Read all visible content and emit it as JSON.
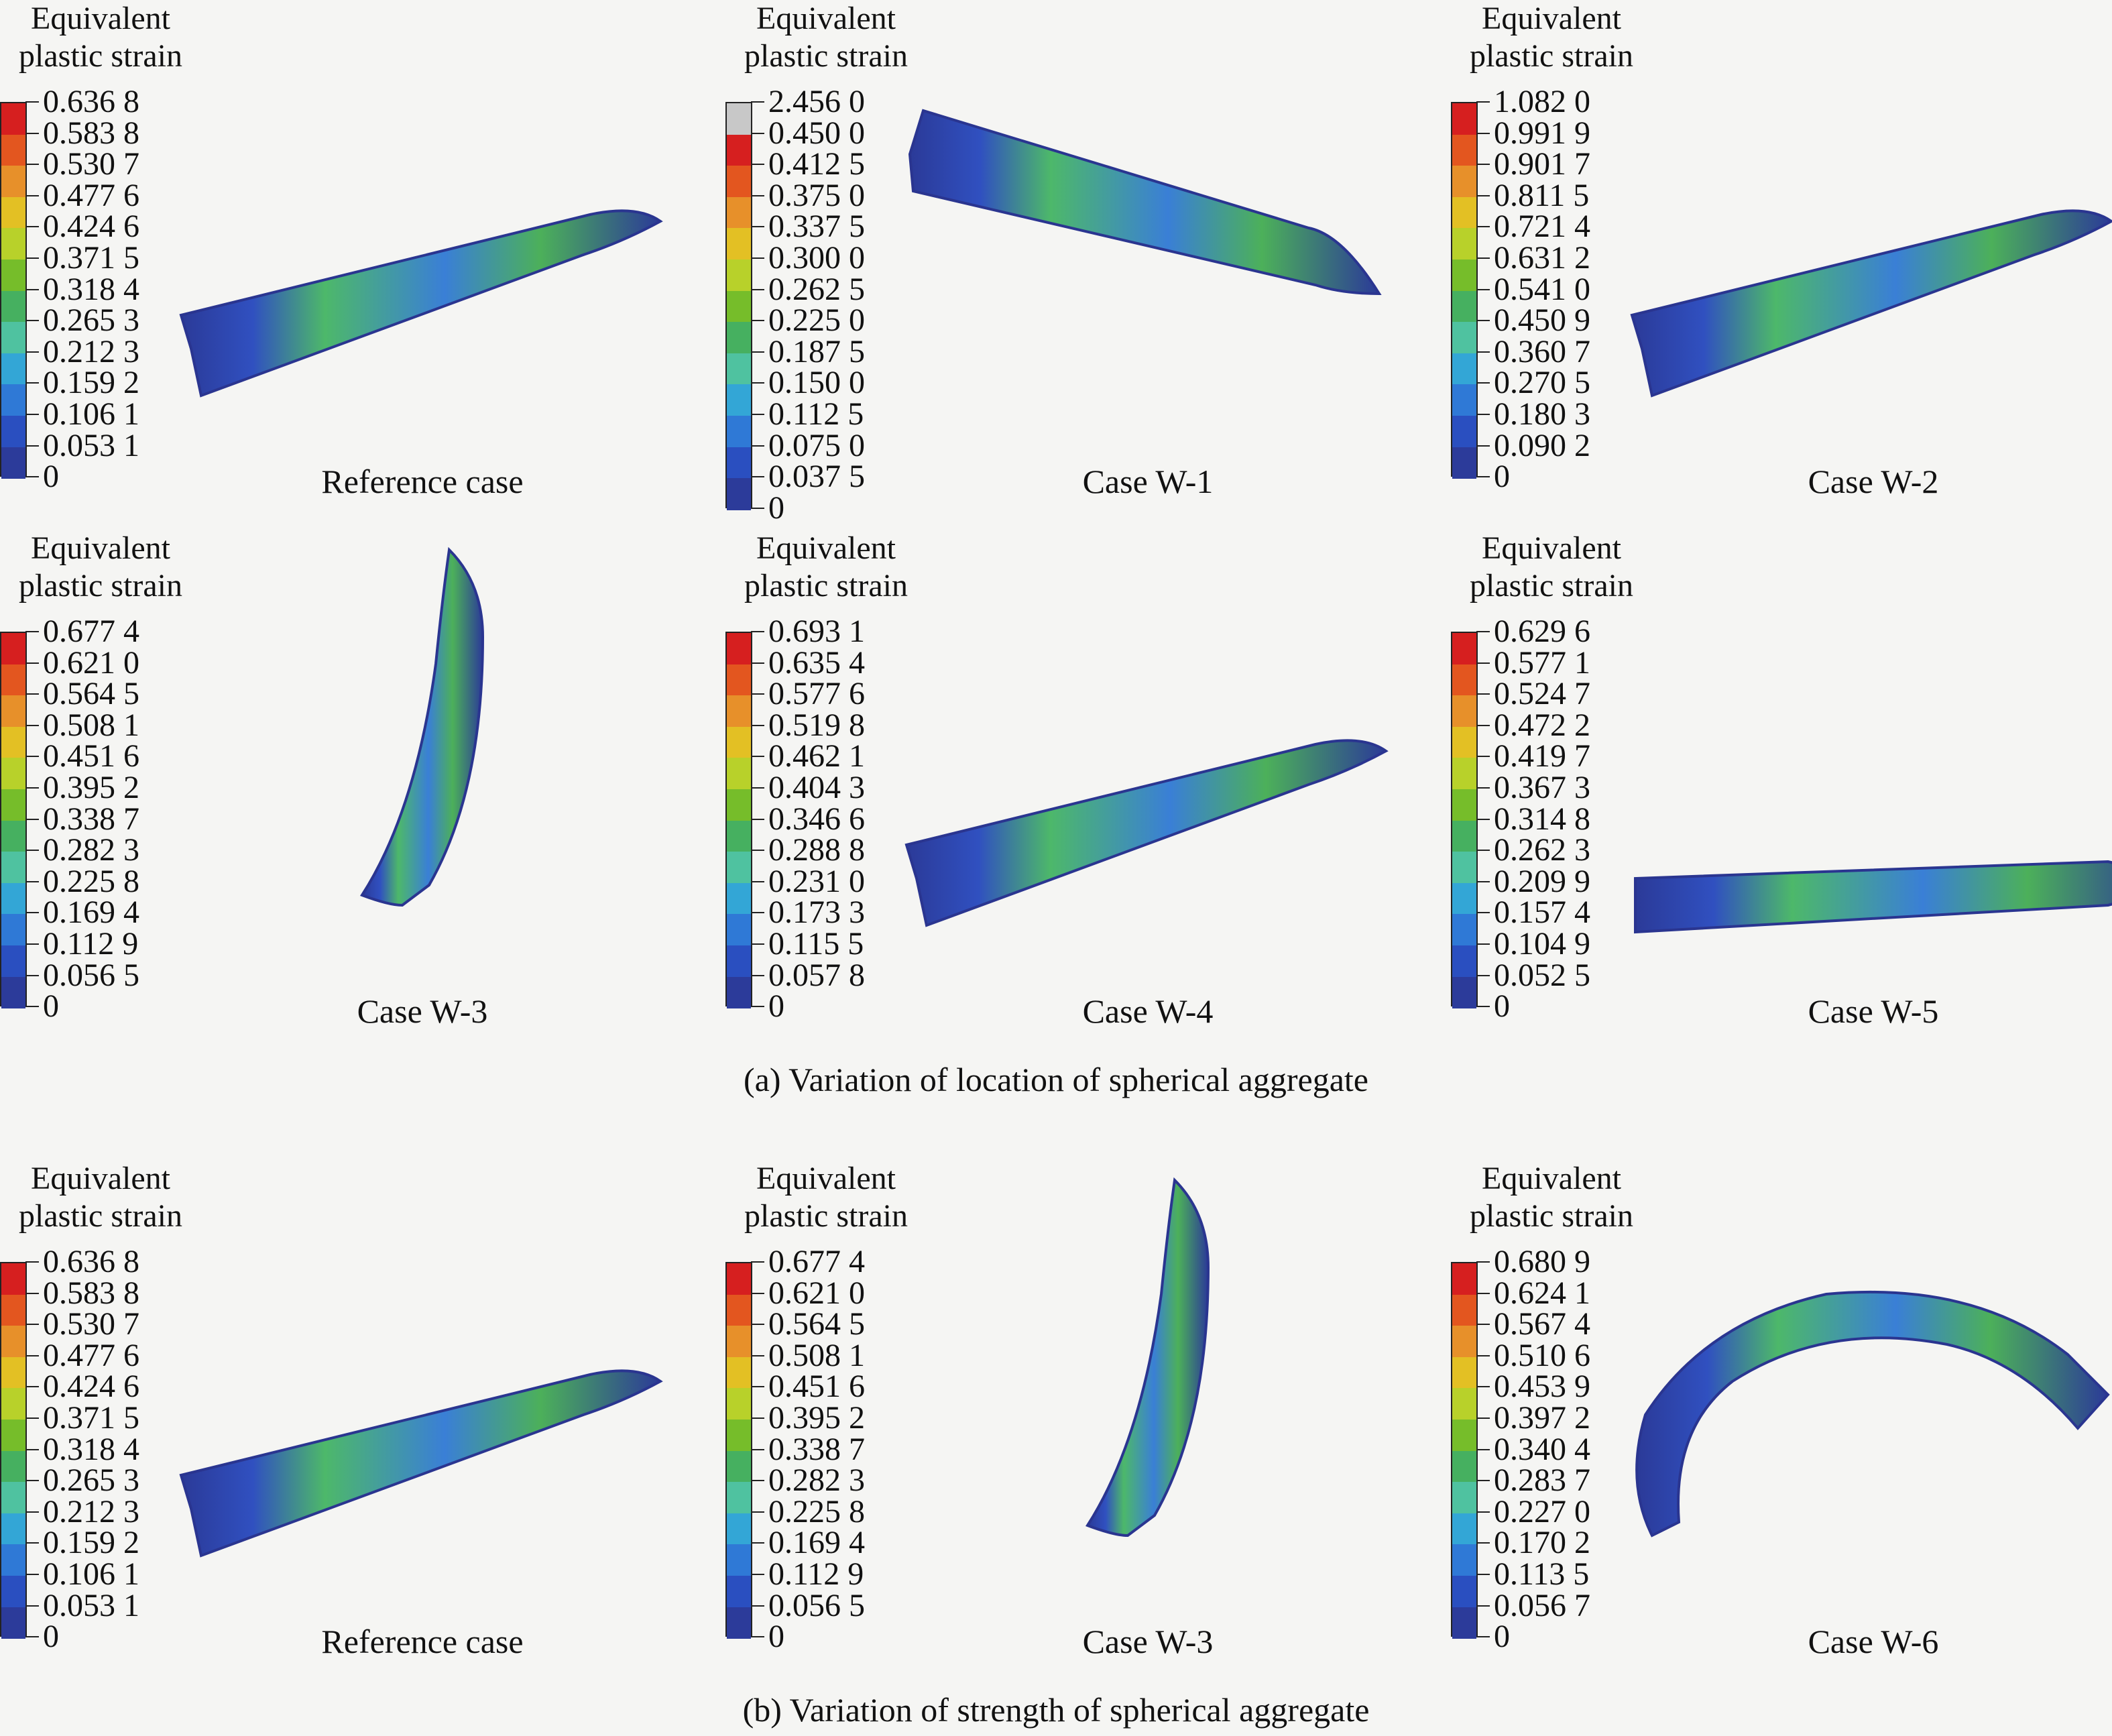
{
  "legend_title": "Equivalent\nplastic strain",
  "colors": {
    "scale": [
      "#2c3b9a",
      "#2a4fc0",
      "#2f79d6",
      "#33a6d6",
      "#4fc2a0",
      "#46b060",
      "#4ca53a",
      "#76bd2a",
      "#b8d12a",
      "#e3c024",
      "#e7902a",
      "#e3561f",
      "#d61f1f"
    ],
    "grey": "#c8c8c8"
  },
  "captions": {
    "a": "(a) Variation of location of spherical aggregate",
    "b": "(b) Variation of strength of spherical aggregate"
  },
  "panels": [
    {
      "label": "Reference case",
      "ticks": [
        "0.636 8",
        "0.583 8",
        "0.530 7",
        "0.477 6",
        "0.424 6",
        "0.371 5",
        "0.318 4",
        "0.265 3",
        "0.212 3",
        "0.159 2",
        "0.106 1",
        "0.053 1",
        "0"
      ],
      "shape": "bar-up-right",
      "grey_top": false
    },
    {
      "label": "Case W-1",
      "ticks": [
        "2.456 0",
        "0.450 0",
        "0.412 5",
        "0.375 0",
        "0.337 5",
        "0.300 0",
        "0.262 5",
        "0.225 0",
        "0.187 5",
        "0.150 0",
        "0.112 5",
        "0.075 0",
        "0.037 5",
        "0"
      ],
      "shape": "bar-down-right",
      "grey_top": true
    },
    {
      "label": "Case W-2",
      "ticks": [
        "1.082 0",
        "0.991 9",
        "0.901 7",
        "0.811 5",
        "0.721 4",
        "0.631 2",
        "0.541 0",
        "0.450 9",
        "0.360 7",
        "0.270 5",
        "0.180 3",
        "0.090 2",
        "0"
      ],
      "shape": "bar-up-right",
      "grey_top": false
    },
    {
      "label": "Case W-3",
      "ticks": [
        "0.677 4",
        "0.621 0",
        "0.564 5",
        "0.508 1",
        "0.451 6",
        "0.395 2",
        "0.338 7",
        "0.282 3",
        "0.225 8",
        "0.169 4",
        "0.112 9",
        "0.056 5",
        "0"
      ],
      "shape": "arc-vertical",
      "grey_top": false
    },
    {
      "label": "Case W-4",
      "ticks": [
        "0.693 1",
        "0.635 4",
        "0.577 6",
        "0.519 8",
        "0.462 1",
        "0.404 3",
        "0.346 6",
        "0.288 8",
        "0.231 0",
        "0.173 3",
        "0.115 5",
        "0.057 8",
        "0"
      ],
      "shape": "bar-up-right",
      "grey_top": false
    },
    {
      "label": "Case W-5",
      "ticks": [
        "0.629 6",
        "0.577 1",
        "0.524 7",
        "0.472 2",
        "0.419 7",
        "0.367 3",
        "0.314 8",
        "0.262 3",
        "0.209 9",
        "0.157 4",
        "0.104 9",
        "0.052 5",
        "0"
      ],
      "shape": "bar-flat",
      "grey_top": false
    },
    {
      "label": "Reference case",
      "ticks": [
        "0.636 8",
        "0.583 8",
        "0.530 7",
        "0.477 6",
        "0.424 6",
        "0.371 5",
        "0.318 4",
        "0.265 3",
        "0.212 3",
        "0.159 2",
        "0.106 1",
        "0.053 1",
        "0"
      ],
      "shape": "bar-up-right",
      "grey_top": false
    },
    {
      "label": "Case W-3",
      "ticks": [
        "0.677 4",
        "0.621 0",
        "0.564 5",
        "0.508 1",
        "0.451 6",
        "0.395 2",
        "0.338 7",
        "0.282 3",
        "0.225 8",
        "0.169 4",
        "0.112 9",
        "0.056 5",
        "0"
      ],
      "shape": "arc-vertical",
      "grey_top": false
    },
    {
      "label": "Case W-6",
      "ticks": [
        "0.680 9",
        "0.624 1",
        "0.567 4",
        "0.510 6",
        "0.453 9",
        "0.397 2",
        "0.340 4",
        "0.283 7",
        "0.227 0",
        "0.170 2",
        "0.113 5",
        "0.056 7",
        "0"
      ],
      "shape": "arch",
      "grey_top": false
    }
  ]
}
